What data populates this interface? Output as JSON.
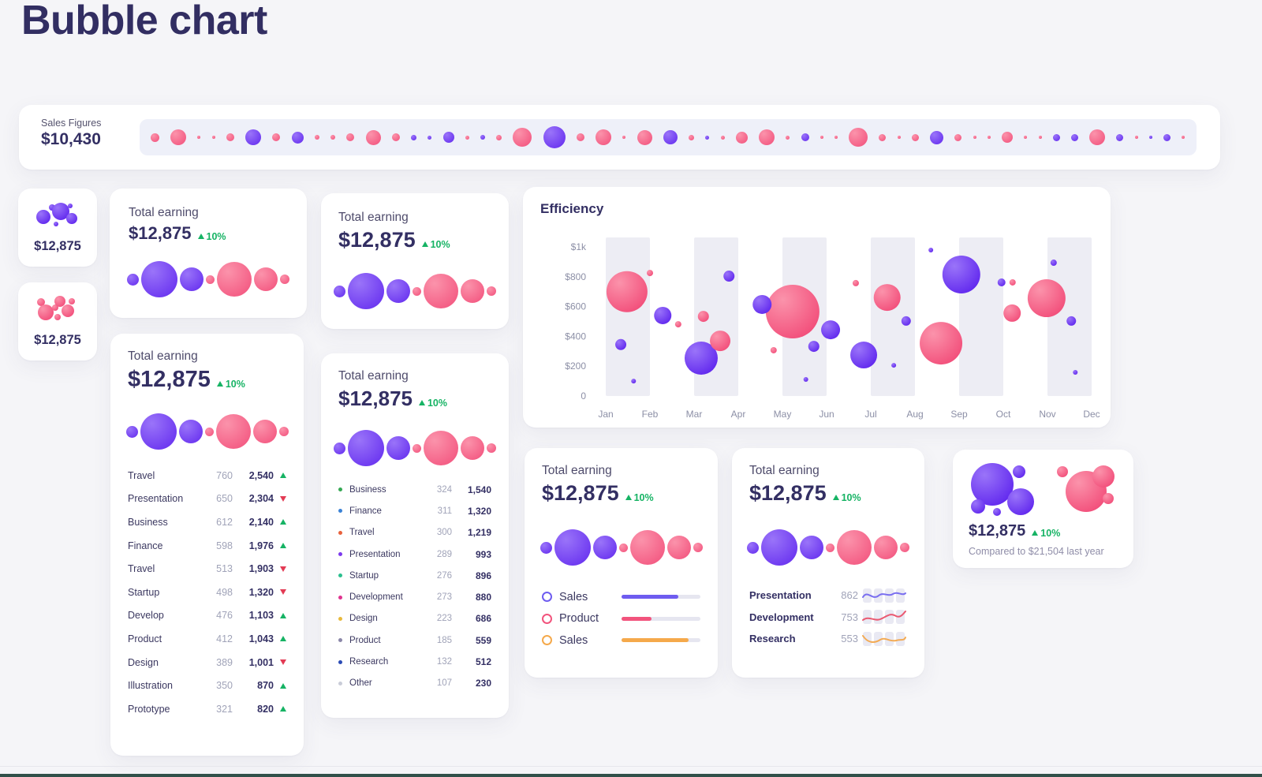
{
  "page": {
    "title": "Bubble chart"
  },
  "colors": {
    "navy": "#332f63",
    "label_gray": "#4e4b6b",
    "muted": "#a0a3b8",
    "green": "#16b364",
    "red": "#e33b54",
    "bubble_pink": "#f24e7a",
    "bubble_pink_light": "#fb93ab",
    "bubble_purple": "#6128ee",
    "bubble_purple_light": "#9a74f9",
    "orange": "#f5a94b",
    "strip_bg": "#eef0f9",
    "band_gray": "#ededf4"
  },
  "sales_strip": {
    "label": "Sales Figures",
    "value": "$10,430",
    "bubbles": [
      [
        11,
        "p"
      ],
      [
        20,
        "p"
      ],
      [
        4,
        "p"
      ],
      [
        4,
        "p"
      ],
      [
        10,
        "p"
      ],
      [
        20,
        "u"
      ],
      [
        10,
        "p"
      ],
      [
        15,
        "u"
      ],
      [
        6,
        "p"
      ],
      [
        6,
        "p"
      ],
      [
        10,
        "p"
      ],
      [
        19,
        "p"
      ],
      [
        10,
        "p"
      ],
      [
        7,
        "u"
      ],
      [
        5,
        "u"
      ],
      [
        14,
        "u"
      ],
      [
        5,
        "p"
      ],
      [
        6,
        "u"
      ],
      [
        7,
        "p"
      ],
      [
        24,
        "p"
      ],
      [
        28,
        "u"
      ],
      [
        10,
        "p"
      ],
      [
        20,
        "p"
      ],
      [
        4,
        "p"
      ],
      [
        19,
        "p"
      ],
      [
        18,
        "u"
      ],
      [
        7,
        "p"
      ],
      [
        5,
        "u"
      ],
      [
        5,
        "p"
      ],
      [
        15,
        "p"
      ],
      [
        20,
        "p"
      ],
      [
        5,
        "p"
      ],
      [
        10,
        "u"
      ],
      [
        4,
        "p"
      ],
      [
        4,
        "p"
      ],
      [
        24,
        "p"
      ],
      [
        9,
        "p"
      ],
      [
        4,
        "p"
      ],
      [
        9,
        "p"
      ],
      [
        17,
        "u"
      ],
      [
        9,
        "p"
      ],
      [
        4,
        "p"
      ],
      [
        4,
        "p"
      ],
      [
        14,
        "p"
      ],
      [
        4,
        "p"
      ],
      [
        4,
        "p"
      ],
      [
        9,
        "u"
      ],
      [
        9,
        "u"
      ],
      [
        20,
        "p"
      ],
      [
        9,
        "u"
      ],
      [
        4,
        "p"
      ],
      [
        4,
        "u"
      ],
      [
        9,
        "u"
      ],
      [
        4,
        "p"
      ]
    ]
  },
  "mini_cards": [
    {
      "value": "$12,875",
      "cluster": "purple"
    },
    {
      "value": "$12,875",
      "cluster": "pink"
    }
  ],
  "earning": {
    "label": "Total earning",
    "value": "$12,875",
    "delta": "10%",
    "delta_dir": "up"
  },
  "bubble_row": [
    [
      15,
      "u"
    ],
    [
      46,
      "u"
    ],
    [
      30,
      "u"
    ],
    [
      11,
      "p"
    ],
    [
      44,
      "p"
    ],
    [
      30,
      "p"
    ],
    [
      12,
      "p"
    ]
  ],
  "table_card": {
    "rows": [
      {
        "label": "Travel",
        "qty": "760",
        "total": "2,540",
        "trend": "up"
      },
      {
        "label": "Presentation",
        "qty": "650",
        "total": "2,304",
        "trend": "down"
      },
      {
        "label": "Business",
        "qty": "612",
        "total": "2,140",
        "trend": "up"
      },
      {
        "label": "Finance",
        "qty": "598",
        "total": "1,976",
        "trend": "up"
      },
      {
        "label": "Travel",
        "qty": "513",
        "total": "1,903",
        "trend": "down"
      },
      {
        "label": "Startup",
        "qty": "498",
        "total": "1,320",
        "trend": "down"
      },
      {
        "label": "Develop",
        "qty": "476",
        "total": "1,103",
        "trend": "up"
      },
      {
        "label": "Product",
        "qty": "412",
        "total": "1,043",
        "trend": "up"
      },
      {
        "label": "Design",
        "qty": "389",
        "total": "1,001",
        "trend": "down"
      },
      {
        "label": "Illustration",
        "qty": "350",
        "total": "870",
        "trend": "up"
      },
      {
        "label": "Prototype",
        "qty": "321",
        "total": "820",
        "trend": "up"
      }
    ]
  },
  "list_card": {
    "rows": [
      {
        "label": "Business",
        "qty": "324",
        "total": "1,540",
        "dot": "#34a853"
      },
      {
        "label": "Finance",
        "qty": "311",
        "total": "1,320",
        "dot": "#3b82d6"
      },
      {
        "label": "Travel",
        "qty": "300",
        "total": "1,219",
        "dot": "#e8613c"
      },
      {
        "label": "Presentation",
        "qty": "289",
        "total": "993",
        "dot": "#7c3aed"
      },
      {
        "label": "Startup",
        "qty": "276",
        "total": "896",
        "dot": "#2bbf8e"
      },
      {
        "label": "Development",
        "qty": "273",
        "total": "880",
        "dot": "#e0338f"
      },
      {
        "label": "Design",
        "qty": "223",
        "total": "686",
        "dot": "#e8b93c"
      },
      {
        "label": "Product",
        "qty": "185",
        "total": "559",
        "dot": "#8b87a8"
      },
      {
        "label": "Research",
        "qty": "132",
        "total": "512",
        "dot": "#2b4bb5"
      },
      {
        "label": "Other",
        "qty": "107",
        "total": "230",
        "dot": "#c9ccd8"
      }
    ]
  },
  "legend_card": {
    "items": [
      {
        "label": "Sales",
        "color": "#6e5cf0",
        "pct": 72
      },
      {
        "label": "Product",
        "color": "#f2547d",
        "pct": 38
      },
      {
        "label": "Sales",
        "color": "#f5a94b",
        "pct": 85
      }
    ]
  },
  "spark_card": {
    "rows": [
      {
        "label": "Presentation",
        "value": "862",
        "color": "#7a6ff0"
      },
      {
        "label": "Development",
        "value": "753",
        "color": "#ea5a72"
      },
      {
        "label": "Research",
        "value": "553",
        "color": "#f3ab55"
      }
    ]
  },
  "compare_card": {
    "clusters": [
      "purple",
      "pink"
    ],
    "value": "$12,875",
    "delta": "10%",
    "note": "Compared to $21,504 last year"
  },
  "chart_data": {
    "type": "scatter",
    "variant": "bubble",
    "title": "Efficiency",
    "x_categories": [
      "Jan",
      "Feb",
      "Mar",
      "Apr",
      "May",
      "Jun",
      "Jul",
      "Aug",
      "Sep",
      "Oct",
      "Nov",
      "Dec"
    ],
    "y_ticks": [
      "$1k",
      "$800",
      "$600",
      "$400",
      "$200",
      "0"
    ],
    "y_tick_values": [
      1000,
      800,
      600,
      400,
      200,
      0
    ],
    "ylim": [
      0,
      1000
    ],
    "grid": false,
    "bands": [
      [
        0,
        1
      ],
      [
        2,
        3
      ],
      [
        4,
        5
      ],
      [
        6,
        7
      ],
      [
        8,
        9
      ],
      [
        10,
        11
      ]
    ],
    "points": [
      {
        "x": 0.48,
        "y": 700,
        "r": 26,
        "c": "p"
      },
      {
        "x": 0.34,
        "y": 345,
        "r": 7,
        "c": "u"
      },
      {
        "x": 0.63,
        "y": 100,
        "r": 3,
        "c": "u"
      },
      {
        "x": 1.0,
        "y": 825,
        "r": 4,
        "c": "p"
      },
      {
        "x": 1.29,
        "y": 540,
        "r": 11,
        "c": "u"
      },
      {
        "x": 1.64,
        "y": 481,
        "r": 4,
        "c": "p"
      },
      {
        "x": 2.21,
        "y": 534,
        "r": 7,
        "c": "p"
      },
      {
        "x": 2.16,
        "y": 254,
        "r": 21,
        "c": "u"
      },
      {
        "x": 2.59,
        "y": 370,
        "r": 13,
        "c": "p"
      },
      {
        "x": 2.79,
        "y": 804,
        "r": 7,
        "c": "u"
      },
      {
        "x": 3.54,
        "y": 614,
        "r": 12,
        "c": "u"
      },
      {
        "x": 3.8,
        "y": 307,
        "r": 4,
        "c": "p"
      },
      {
        "x": 4.23,
        "y": 566,
        "r": 34,
        "c": "p"
      },
      {
        "x": 4.53,
        "y": 111,
        "r": 3,
        "c": "u"
      },
      {
        "x": 4.71,
        "y": 333,
        "r": 7,
        "c": "u"
      },
      {
        "x": 5.09,
        "y": 444,
        "r": 12,
        "c": "u"
      },
      {
        "x": 5.66,
        "y": 757,
        "r": 4,
        "c": "p"
      },
      {
        "x": 5.84,
        "y": 275,
        "r": 17,
        "c": "u"
      },
      {
        "x": 6.37,
        "y": 661,
        "r": 17,
        "c": "p"
      },
      {
        "x": 6.8,
        "y": 503,
        "r": 6,
        "c": "u"
      },
      {
        "x": 6.52,
        "y": 206,
        "r": 3,
        "c": "u"
      },
      {
        "x": 7.36,
        "y": 979,
        "r": 3,
        "c": "u"
      },
      {
        "x": 7.59,
        "y": 354,
        "r": 27,
        "c": "p"
      },
      {
        "x": 8.05,
        "y": 815,
        "r": 24,
        "c": "u"
      },
      {
        "x": 8.96,
        "y": 762,
        "r": 5,
        "c": "u"
      },
      {
        "x": 9.21,
        "y": 762,
        "r": 4,
        "c": "p"
      },
      {
        "x": 9.2,
        "y": 556,
        "r": 11,
        "c": "p"
      },
      {
        "x": 9.98,
        "y": 656,
        "r": 24,
        "c": "p"
      },
      {
        "x": 10.14,
        "y": 894,
        "r": 4,
        "c": "u"
      },
      {
        "x": 10.54,
        "y": 503,
        "r": 6,
        "c": "u"
      },
      {
        "x": 10.63,
        "y": 159,
        "r": 3,
        "c": "u"
      }
    ]
  }
}
